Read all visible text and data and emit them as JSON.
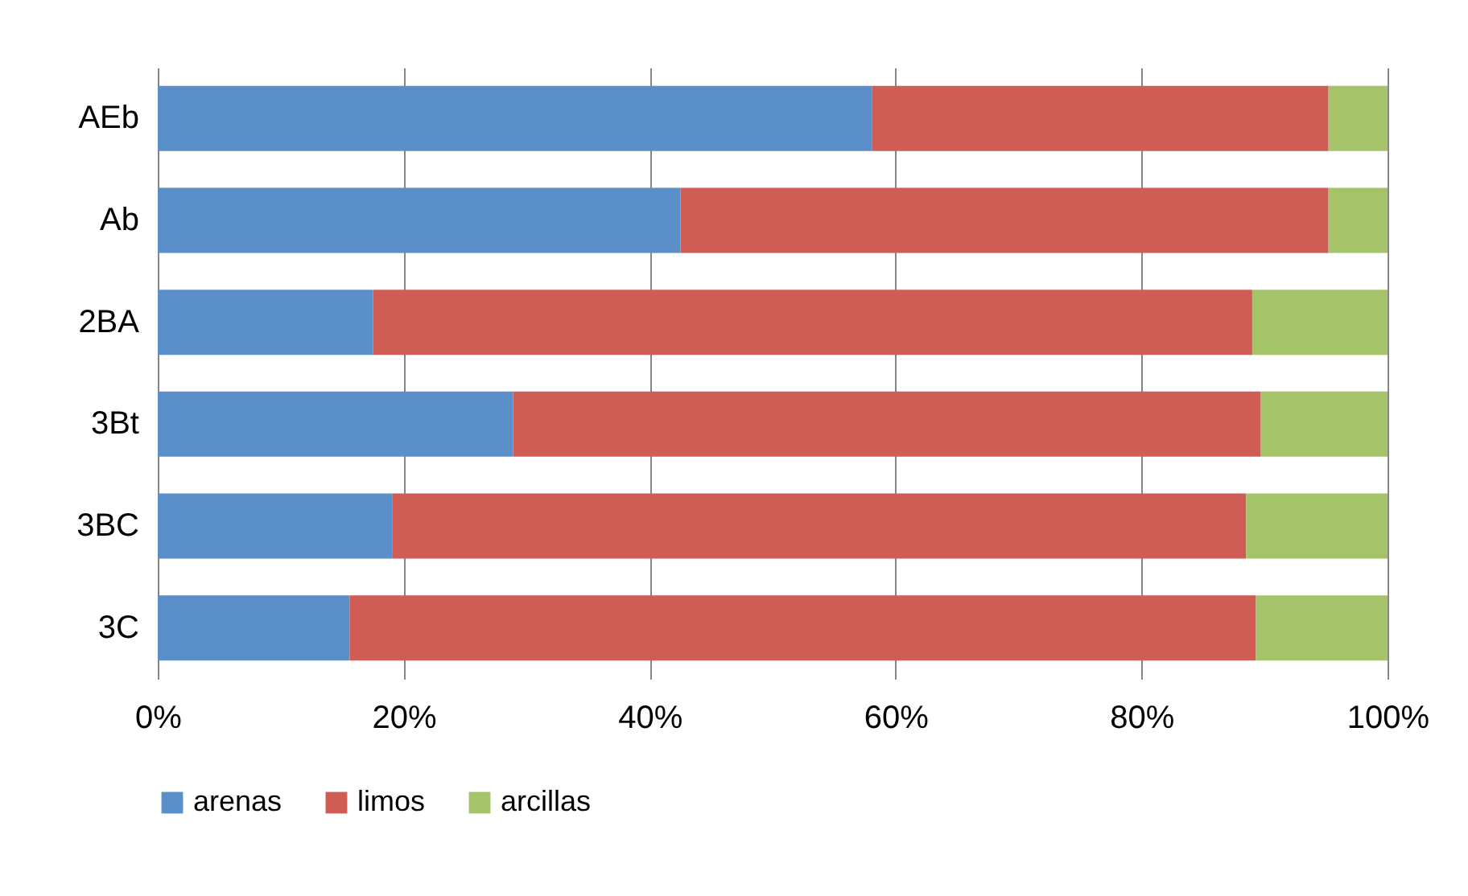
{
  "chart_data": {
    "type": "bar",
    "orientation": "horizontal",
    "stacked": true,
    "categories": [
      "AEb",
      "Ab",
      "2BA",
      "3Bt",
      "3BC",
      "3C"
    ],
    "series": [
      {
        "name": "arenas",
        "color": "#5a8fca",
        "values": [
          58.1,
          42.5,
          17.5,
          28.9,
          19.1,
          15.6
        ]
      },
      {
        "name": "limos",
        "color": "#d05c56",
        "values": [
          37.1,
          52.7,
          71.5,
          60.8,
          69.4,
          73.7
        ]
      },
      {
        "name": "arcillas",
        "color": "#a5c46a",
        "values": [
          4.8,
          4.8,
          11.0,
          10.3,
          11.5,
          10.7
        ]
      }
    ],
    "xlim": [
      0,
      100
    ],
    "xticks": [
      {
        "value": 0,
        "label": "0%"
      },
      {
        "value": 20,
        "label": "20%"
      },
      {
        "value": 40,
        "label": "40%"
      },
      {
        "value": 60,
        "label": "60%"
      },
      {
        "value": 80,
        "label": "80%"
      },
      {
        "value": 100,
        "label": "100%"
      }
    ],
    "grid": "x",
    "legend": "bottom"
  }
}
